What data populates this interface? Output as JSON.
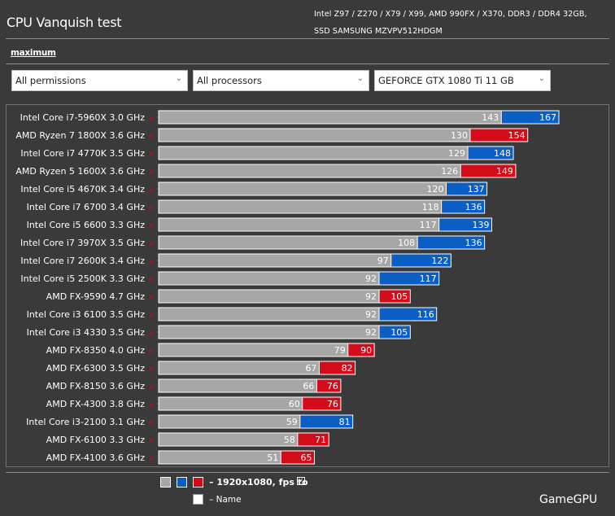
{
  "header": {
    "title": "CPU Vanquish test",
    "specs_line1": "Intel Z97 / Z270 / X79 / X99, AMD 990FX / X370, DDR3 / DDR4 32GB,",
    "specs_line2": "SSD SAMSUNG MZVPV512HDGM"
  },
  "mode_link": "maximum",
  "filters": {
    "permissions": "All permissions",
    "processors": "All processors",
    "gpu": "GEFORCE GTX 1080 Ti 11 GB"
  },
  "legend": {
    "label": "– 1920x1080, fps to",
    "check_glyph": "✓",
    "name_label": "– Name",
    "colors": {
      "min": "#a6a6a6",
      "intel": "#0a5ec4",
      "amd": "#d40c1a"
    }
  },
  "watermark": "GameGPU",
  "chart_data": {
    "type": "bar",
    "orientation": "horizontal",
    "stacked_overlay": true,
    "xlim": [
      0,
      185
    ],
    "categories": [
      "Intel Core i7-5960X 3.0 GHz",
      "AMD Ryzen 7 1800X 3.6 GHz",
      "Intel Core i7 4770K 3.5 GHz",
      "AMD Ryzen 5 1600X 3.6 GHz",
      "Intel Core i5 4670K 3.4 GHz",
      "Intel Core i7 6700 3.4 GHz",
      "Intel Core i5 6600 3.3 GHz",
      "Intel Core i7 3970X 3.5 GHz",
      "Intel Core i7 2600K 3.4 GHz",
      "Intel Core i5 2500K 3.3 GHz",
      "AMD FX-9590 4.7 GHz",
      "Intel Core i3 6100 3.5 GHz",
      "Intel Core i3 4330 3.5 GHz",
      "AMD FX-8350 4.0 GHz",
      "AMD FX-6300 3.5 GHz",
      "AMD FX-8150 3.6 GHz",
      "AMD FX-4300 3.8 GHz",
      "Intel Core i3-2100 3.1 GHz",
      "AMD FX-6100 3.3 GHz",
      "AMD FX-4100 3.6 GHz"
    ],
    "vendor": [
      "intel",
      "amd",
      "intel",
      "amd",
      "intel",
      "intel",
      "intel",
      "intel",
      "intel",
      "intel",
      "amd",
      "intel",
      "intel",
      "amd",
      "amd",
      "amd",
      "amd",
      "intel",
      "amd",
      "amd"
    ],
    "series": [
      {
        "values": [
          143,
          130,
          129,
          126,
          120,
          118,
          117,
          108,
          97,
          92,
          92,
          92,
          92,
          79,
          67,
          66,
          60,
          59,
          58,
          51
        ]
      },
      {
        "values": [
          167,
          154,
          148,
          149,
          137,
          136,
          139,
          136,
          122,
          117,
          105,
          116,
          105,
          90,
          82,
          76,
          76,
          81,
          71,
          65
        ]
      }
    ]
  }
}
